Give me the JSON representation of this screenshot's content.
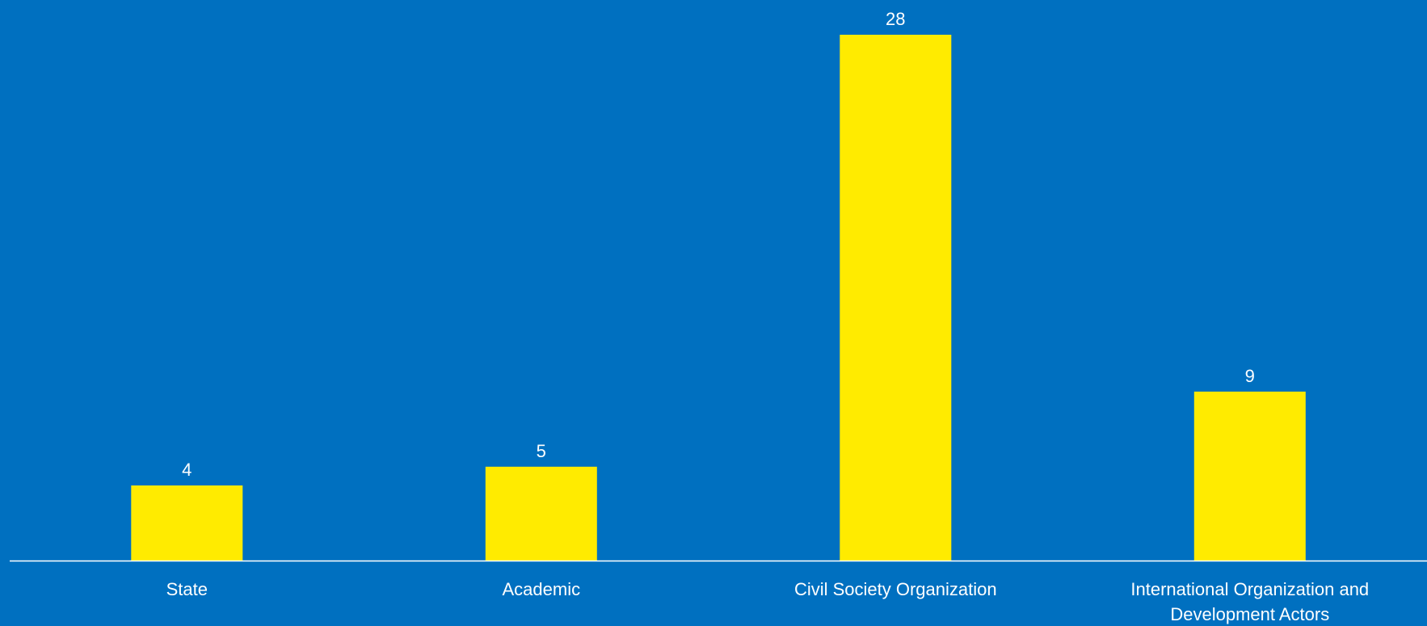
{
  "colors": {
    "background": "#0070C0",
    "bar": "#FFEB00",
    "axis": "#FFFFFF",
    "text": "#FFFFFF"
  },
  "chart_data": {
    "type": "bar",
    "categories": [
      "State",
      "Academic",
      "Civil Society Organization",
      "International Organization and\nDevelopment Actors"
    ],
    "values": [
      4,
      5,
      28,
      9
    ],
    "data_labels": [
      "4",
      "5",
      "28",
      "9"
    ],
    "ylim": [
      0,
      28
    ],
    "grid": false,
    "legend": "none"
  }
}
